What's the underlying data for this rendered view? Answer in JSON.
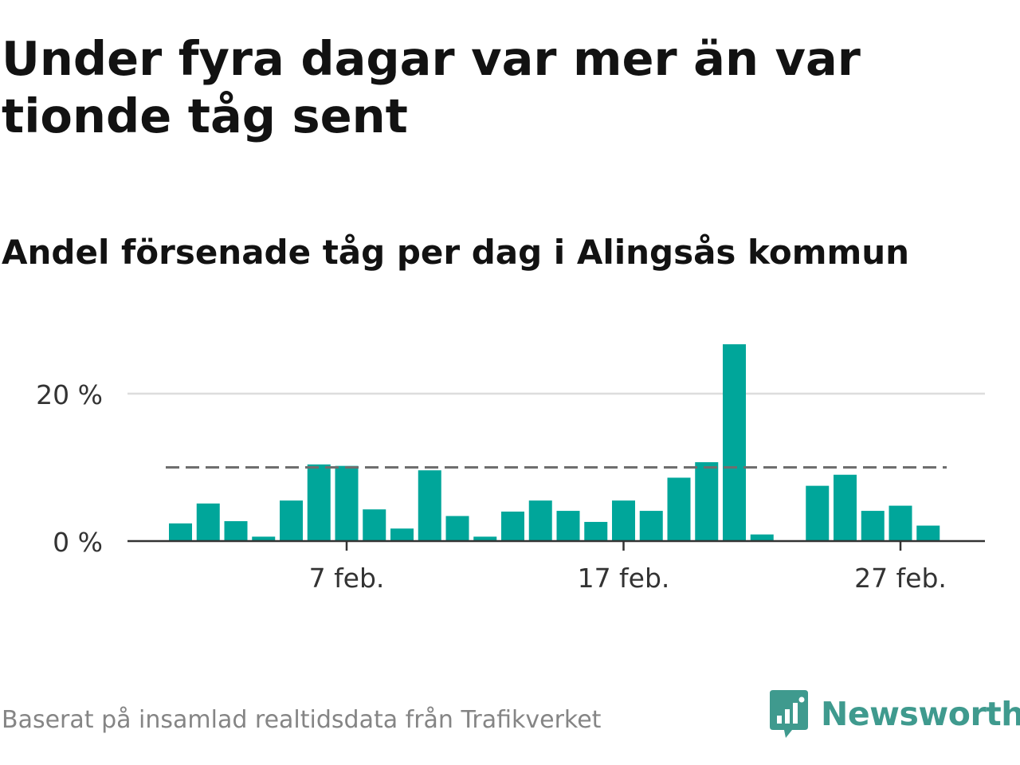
{
  "title": "Under fyra dagar var mer än var tionde tåg sent",
  "subtitle": "Andel försenade tåg per dag i Alingsås kommun",
  "footer": {
    "source": "Baserat på insamlad realtidsdata från Trafikverket",
    "brand": "Newsworthy"
  },
  "colors": {
    "bar": "#00a69a",
    "threshold_line": "#6e6e6e",
    "gridline": "#dddddd",
    "axis": "#333333",
    "brand": "#3f9a8e"
  },
  "chart_data": {
    "type": "bar",
    "x": [
      "1 feb.",
      "2 feb.",
      "3 feb.",
      "4 feb.",
      "5 feb.",
      "6 feb.",
      "7 feb.",
      "8 feb.",
      "9 feb.",
      "10 feb.",
      "11 feb.",
      "12 feb.",
      "13 feb.",
      "14 feb.",
      "15 feb.",
      "16 feb.",
      "17 feb.",
      "18 feb.",
      "19 feb.",
      "20 feb.",
      "21 feb.",
      "22 feb.",
      "23 feb.",
      "24 feb.",
      "25 feb.",
      "26 feb.",
      "27 feb.",
      "28 feb."
    ],
    "values": [
      2.4,
      5.1,
      2.7,
      0.6,
      5.5,
      10.4,
      10.2,
      4.3,
      1.7,
      9.6,
      3.4,
      0.6,
      4.0,
      5.5,
      4.1,
      2.6,
      5.5,
      4.1,
      8.6,
      10.7,
      26.7,
      0.9,
      null,
      7.5,
      9.0,
      4.1,
      4.8,
      2.1
    ],
    "tick_labels": [
      "7 feb.",
      "17 feb.",
      "27 feb."
    ],
    "y_tick_labels": [
      "0 %",
      "20 %"
    ],
    "y_ticks": [
      0,
      20
    ],
    "ylim": [
      0,
      30
    ],
    "threshold": 10,
    "grid": true
  }
}
